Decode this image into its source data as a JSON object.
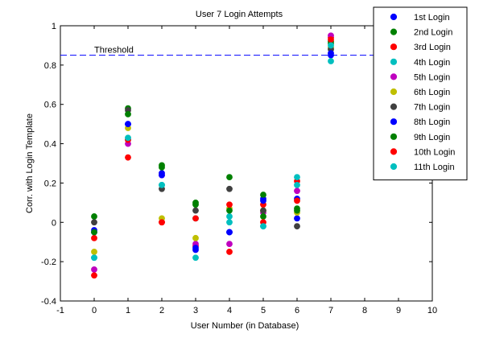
{
  "chart_data": {
    "type": "scatter",
    "title": "User 7 Login Attempts",
    "xlabel": "User Number (in Database)",
    "ylabel": "Corr. with Login Template",
    "xlim": [
      -1,
      10
    ],
    "ylim": [
      -0.4,
      1
    ],
    "xticks": [
      "-1",
      "0",
      "1",
      "2",
      "3",
      "4",
      "5",
      "6",
      "7",
      "8",
      "9",
      "10"
    ],
    "yticks": [
      "-0.4",
      "-0.2",
      "0",
      "0.2",
      "0.4",
      "0.6",
      "0.8",
      "1"
    ],
    "grid": false,
    "legend_position": "top-right",
    "threshold": {
      "label": "Threshold",
      "value": 0.85,
      "color": "#0000ff",
      "style": "dashed"
    },
    "series": [
      {
        "name": "1st Login",
        "color": "#0000ff",
        "points": [
          [
            0,
            -0.05
          ],
          [
            1,
            0.5
          ],
          [
            2,
            0.25
          ],
          [
            3,
            -0.14
          ],
          [
            4,
            -0.05
          ],
          [
            5,
            0.12
          ],
          [
            6,
            0.02
          ],
          [
            7,
            0.85
          ]
        ]
      },
      {
        "name": "2nd Login",
        "color": "#008000",
        "points": [
          [
            0,
            0.03
          ],
          [
            1,
            0.58
          ],
          [
            2,
            0.29
          ],
          [
            3,
            0.1
          ],
          [
            4,
            0.23
          ],
          [
            5,
            0.14
          ],
          [
            6,
            0.07
          ],
          [
            7,
            0.92
          ]
        ]
      },
      {
        "name": "3rd Login",
        "color": "#ff0000",
        "points": [
          [
            0,
            -0.08
          ],
          [
            1,
            0.33
          ],
          [
            2,
            0.0
          ],
          [
            3,
            -0.12
          ],
          [
            4,
            -0.15
          ],
          [
            5,
            0.09
          ],
          [
            6,
            0.21
          ],
          [
            7,
            0.94
          ]
        ]
      },
      {
        "name": "4th Login",
        "color": "#00bfbf",
        "points": [
          [
            0,
            -0.18
          ],
          [
            1,
            0.42
          ],
          [
            2,
            0.19
          ],
          [
            3,
            0.02
          ],
          [
            4,
            0.03
          ],
          [
            5,
            -0.02
          ],
          [
            6,
            0.23
          ],
          [
            7,
            0.82
          ]
        ]
      },
      {
        "name": "5th Login",
        "color": "#bf00bf",
        "points": [
          [
            0,
            -0.24
          ],
          [
            1,
            0.4
          ],
          [
            2,
            0.24
          ],
          [
            3,
            -0.11
          ],
          [
            4,
            -0.11
          ],
          [
            5,
            0.05
          ],
          [
            6,
            0.16
          ],
          [
            7,
            0.95
          ]
        ]
      },
      {
        "name": "6th Login",
        "color": "#bfbf00",
        "points": [
          [
            0,
            -0.15
          ],
          [
            1,
            0.48
          ],
          [
            2,
            0.02
          ],
          [
            3,
            -0.08
          ],
          [
            4,
            0.07
          ],
          [
            5,
            0.06
          ],
          [
            6,
            0.05
          ],
          [
            7,
            0.89
          ]
        ]
      },
      {
        "name": "7th Login",
        "color": "#404040",
        "points": [
          [
            0,
            0.0
          ],
          [
            1,
            0.57
          ],
          [
            2,
            0.17
          ],
          [
            3,
            0.06
          ],
          [
            4,
            0.17
          ],
          [
            5,
            0.06
          ],
          [
            6,
            -0.02
          ],
          [
            7,
            0.88
          ]
        ]
      },
      {
        "name": "8th Login",
        "color": "#0000ff",
        "points": [
          [
            0,
            -0.04
          ],
          [
            1,
            0.5
          ],
          [
            2,
            0.24
          ],
          [
            3,
            -0.13
          ],
          [
            4,
            -0.05
          ],
          [
            5,
            0.11
          ],
          [
            6,
            0.12
          ],
          [
            7,
            0.86
          ]
        ]
      },
      {
        "name": "9th Login",
        "color": "#008000",
        "points": [
          [
            0,
            -0.05
          ],
          [
            1,
            0.55
          ],
          [
            2,
            0.28
          ],
          [
            3,
            0.09
          ],
          [
            4,
            0.06
          ],
          [
            5,
            0.03
          ],
          [
            6,
            0.06
          ],
          [
            7,
            0.91
          ]
        ]
      },
      {
        "name": "10th Login",
        "color": "#ff0000",
        "points": [
          [
            0,
            -0.27
          ],
          [
            1,
            0.42
          ],
          [
            2,
            0.0
          ],
          [
            3,
            0.02
          ],
          [
            4,
            0.09
          ],
          [
            5,
            0.0
          ],
          [
            6,
            0.11
          ],
          [
            7,
            0.93
          ]
        ]
      },
      {
        "name": "11th Login",
        "color": "#00bfbf",
        "points": [
          [
            0,
            -0.18
          ],
          [
            1,
            0.43
          ],
          [
            2,
            0.19
          ],
          [
            3,
            -0.18
          ],
          [
            4,
            0.0
          ],
          [
            5,
            -0.02
          ],
          [
            6,
            0.19
          ],
          [
            7,
            0.9
          ]
        ]
      }
    ]
  }
}
